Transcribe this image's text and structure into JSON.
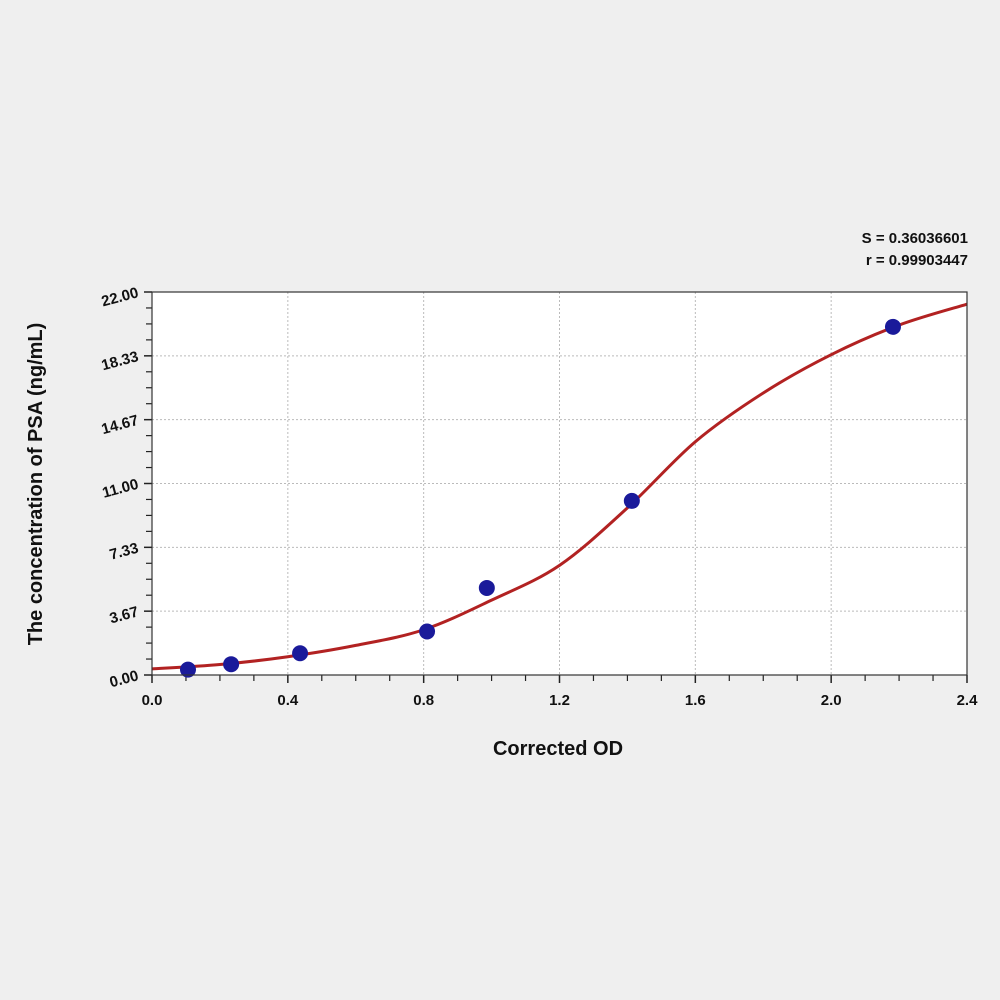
{
  "chart_data": {
    "type": "scatter",
    "title": "",
    "xlabel": "Corrected OD",
    "ylabel": "The concentration of PSA (ng/mL)",
    "xlim": [
      0,
      2.4
    ],
    "ylim": [
      0,
      22
    ],
    "x_ticks": [
      "0.0",
      "0.4",
      "0.8",
      "1.2",
      "1.6",
      "2.0",
      "2.4"
    ],
    "y_ticks": [
      "0.00",
      "3.67",
      "7.33",
      "11.00",
      "14.67",
      "18.33",
      "22.00"
    ],
    "grid": true,
    "annotations": [
      "S = 0.36036601",
      "r = 0.99903447"
    ],
    "series": [
      {
        "type": "scatter",
        "color": "#1a1a9a",
        "x": [
          0.106,
          0.233,
          0.436,
          0.81,
          0.986,
          1.413,
          2.182
        ],
        "y": [
          0.31,
          0.62,
          1.25,
          2.5,
          5.0,
          10.0,
          20.0
        ]
      },
      {
        "type": "line",
        "color": "#b22222",
        "x": [
          0,
          0.2,
          0.4,
          0.6,
          0.8,
          1.0,
          1.2,
          1.4,
          1.6,
          1.8,
          2.0,
          2.2,
          2.4
        ],
        "y": [
          0.35,
          0.6,
          1.05,
          1.7,
          2.6,
          4.3,
          6.3,
          9.6,
          13.4,
          16.2,
          18.4,
          20.1,
          21.3
        ]
      }
    ]
  }
}
